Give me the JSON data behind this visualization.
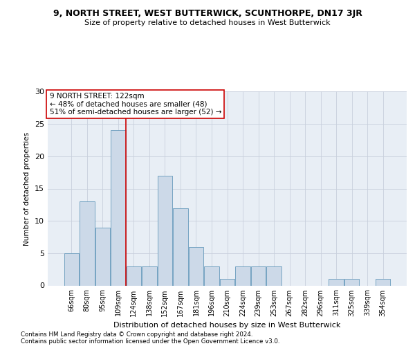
{
  "title": "9, NORTH STREET, WEST BUTTERWICK, SCUNTHORPE, DN17 3JR",
  "subtitle": "Size of property relative to detached houses in West Butterwick",
  "xlabel": "Distribution of detached houses by size in West Butterwick",
  "ylabel": "Number of detached properties",
  "categories": [
    "66sqm",
    "80sqm",
    "95sqm",
    "109sqm",
    "124sqm",
    "138sqm",
    "152sqm",
    "167sqm",
    "181sqm",
    "196sqm",
    "210sqm",
    "224sqm",
    "239sqm",
    "253sqm",
    "267sqm",
    "282sqm",
    "296sqm",
    "311sqm",
    "325sqm",
    "339sqm",
    "354sqm"
  ],
  "values": [
    5,
    13,
    9,
    24,
    3,
    3,
    17,
    12,
    6,
    3,
    1,
    3,
    3,
    3,
    0,
    0,
    0,
    1,
    1,
    0,
    1
  ],
  "bar_color": "#ccd9e8",
  "bar_edge_color": "#6699bb",
  "grid_color": "#c8d0dc",
  "background_color": "#e8eef5",
  "vline_x_index": 3.5,
  "vline_color": "#cc0000",
  "annotation_lines": [
    "9 NORTH STREET: 122sqm",
    "← 48% of detached houses are smaller (48)",
    "51% of semi-detached houses are larger (52) →"
  ],
  "annotation_box_facecolor": "#ffffff",
  "annotation_box_edgecolor": "#cc0000",
  "ylim": [
    0,
    30
  ],
  "yticks": [
    0,
    5,
    10,
    15,
    20,
    25,
    30
  ],
  "footer1": "Contains HM Land Registry data © Crown copyright and database right 2024.",
  "footer2": "Contains public sector information licensed under the Open Government Licence v3.0."
}
